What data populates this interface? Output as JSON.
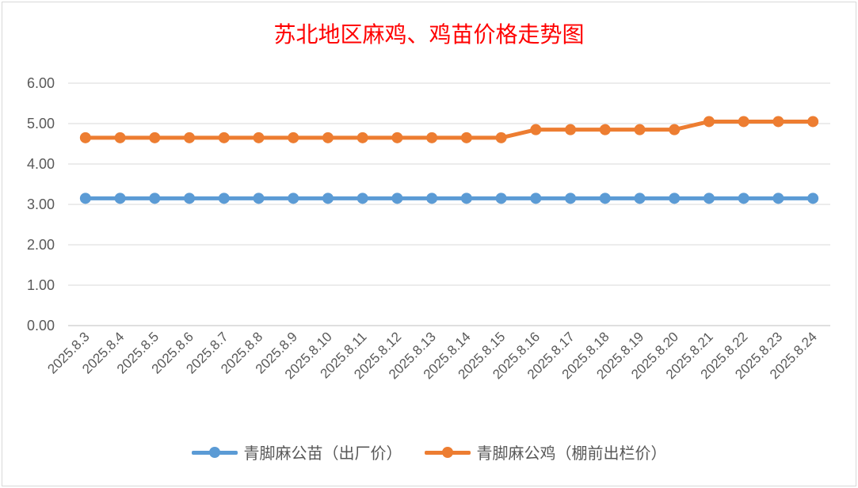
{
  "chart_data": {
    "type": "line",
    "title": "苏北地区麻鸡、鸡苗价格走势图",
    "xlabel": "",
    "ylabel": "",
    "categories": [
      "2025.8.3",
      "2025.8.4",
      "2025.8.5",
      "2025.8.6",
      "2025.8.7",
      "2025.8.8",
      "2025.8.9",
      "2025.8.10",
      "2025.8.11",
      "2025.8.12",
      "2025.8.13",
      "2025.8.14",
      "2025.8.15",
      "2025.8.16",
      "2025.8.17",
      "2025.8.18",
      "2025.8.19",
      "2025.8.20",
      "2025.8.21",
      "2025.8.22",
      "2025.8.23",
      "2025.8.24"
    ],
    "yticks": [
      "0.00",
      "1.00",
      "2.00",
      "3.00",
      "4.00",
      "5.00",
      "6.00"
    ],
    "ylim": [
      0,
      6
    ],
    "grid": true,
    "legend_position": "bottom",
    "series": [
      {
        "name": "青脚麻公苗（出厂价）",
        "color": "#5b9bd5",
        "values": [
          3.15,
          3.15,
          3.15,
          3.15,
          3.15,
          3.15,
          3.15,
          3.15,
          3.15,
          3.15,
          3.15,
          3.15,
          3.15,
          3.15,
          3.15,
          3.15,
          3.15,
          3.15,
          3.15,
          3.15,
          3.15,
          3.15
        ]
      },
      {
        "name": "青脚麻公鸡（棚前出栏价）",
        "color": "#ed7d31",
        "values": [
          4.65,
          4.65,
          4.65,
          4.65,
          4.65,
          4.65,
          4.65,
          4.65,
          4.65,
          4.65,
          4.65,
          4.65,
          4.65,
          4.85,
          4.85,
          4.85,
          4.85,
          4.85,
          5.05,
          5.05,
          5.05,
          5.05
        ]
      }
    ]
  }
}
